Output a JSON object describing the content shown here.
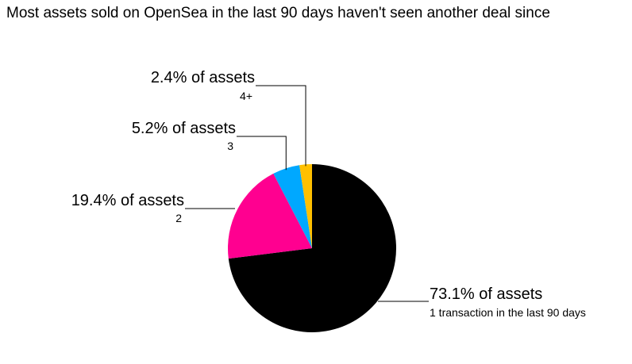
{
  "chart_data": {
    "type": "pie",
    "title": "Most assets sold on OpenSea in the last 90 days haven't seen another deal since",
    "slices": [
      {
        "label": "73.1% of assets",
        "sublabel": "1 transaction in the last 90 days",
        "value": 73.1,
        "color": "#000000"
      },
      {
        "label": "19.4% of assets",
        "sublabel": "2",
        "value": 19.4,
        "color": "#ff0090"
      },
      {
        "label": "5.2% of assets",
        "sublabel": "3",
        "value": 5.2,
        "color": "#00a8ff"
      },
      {
        "label": "2.4% of assets",
        "sublabel": "4+",
        "value": 2.4,
        "color": "#ffc000"
      }
    ]
  }
}
